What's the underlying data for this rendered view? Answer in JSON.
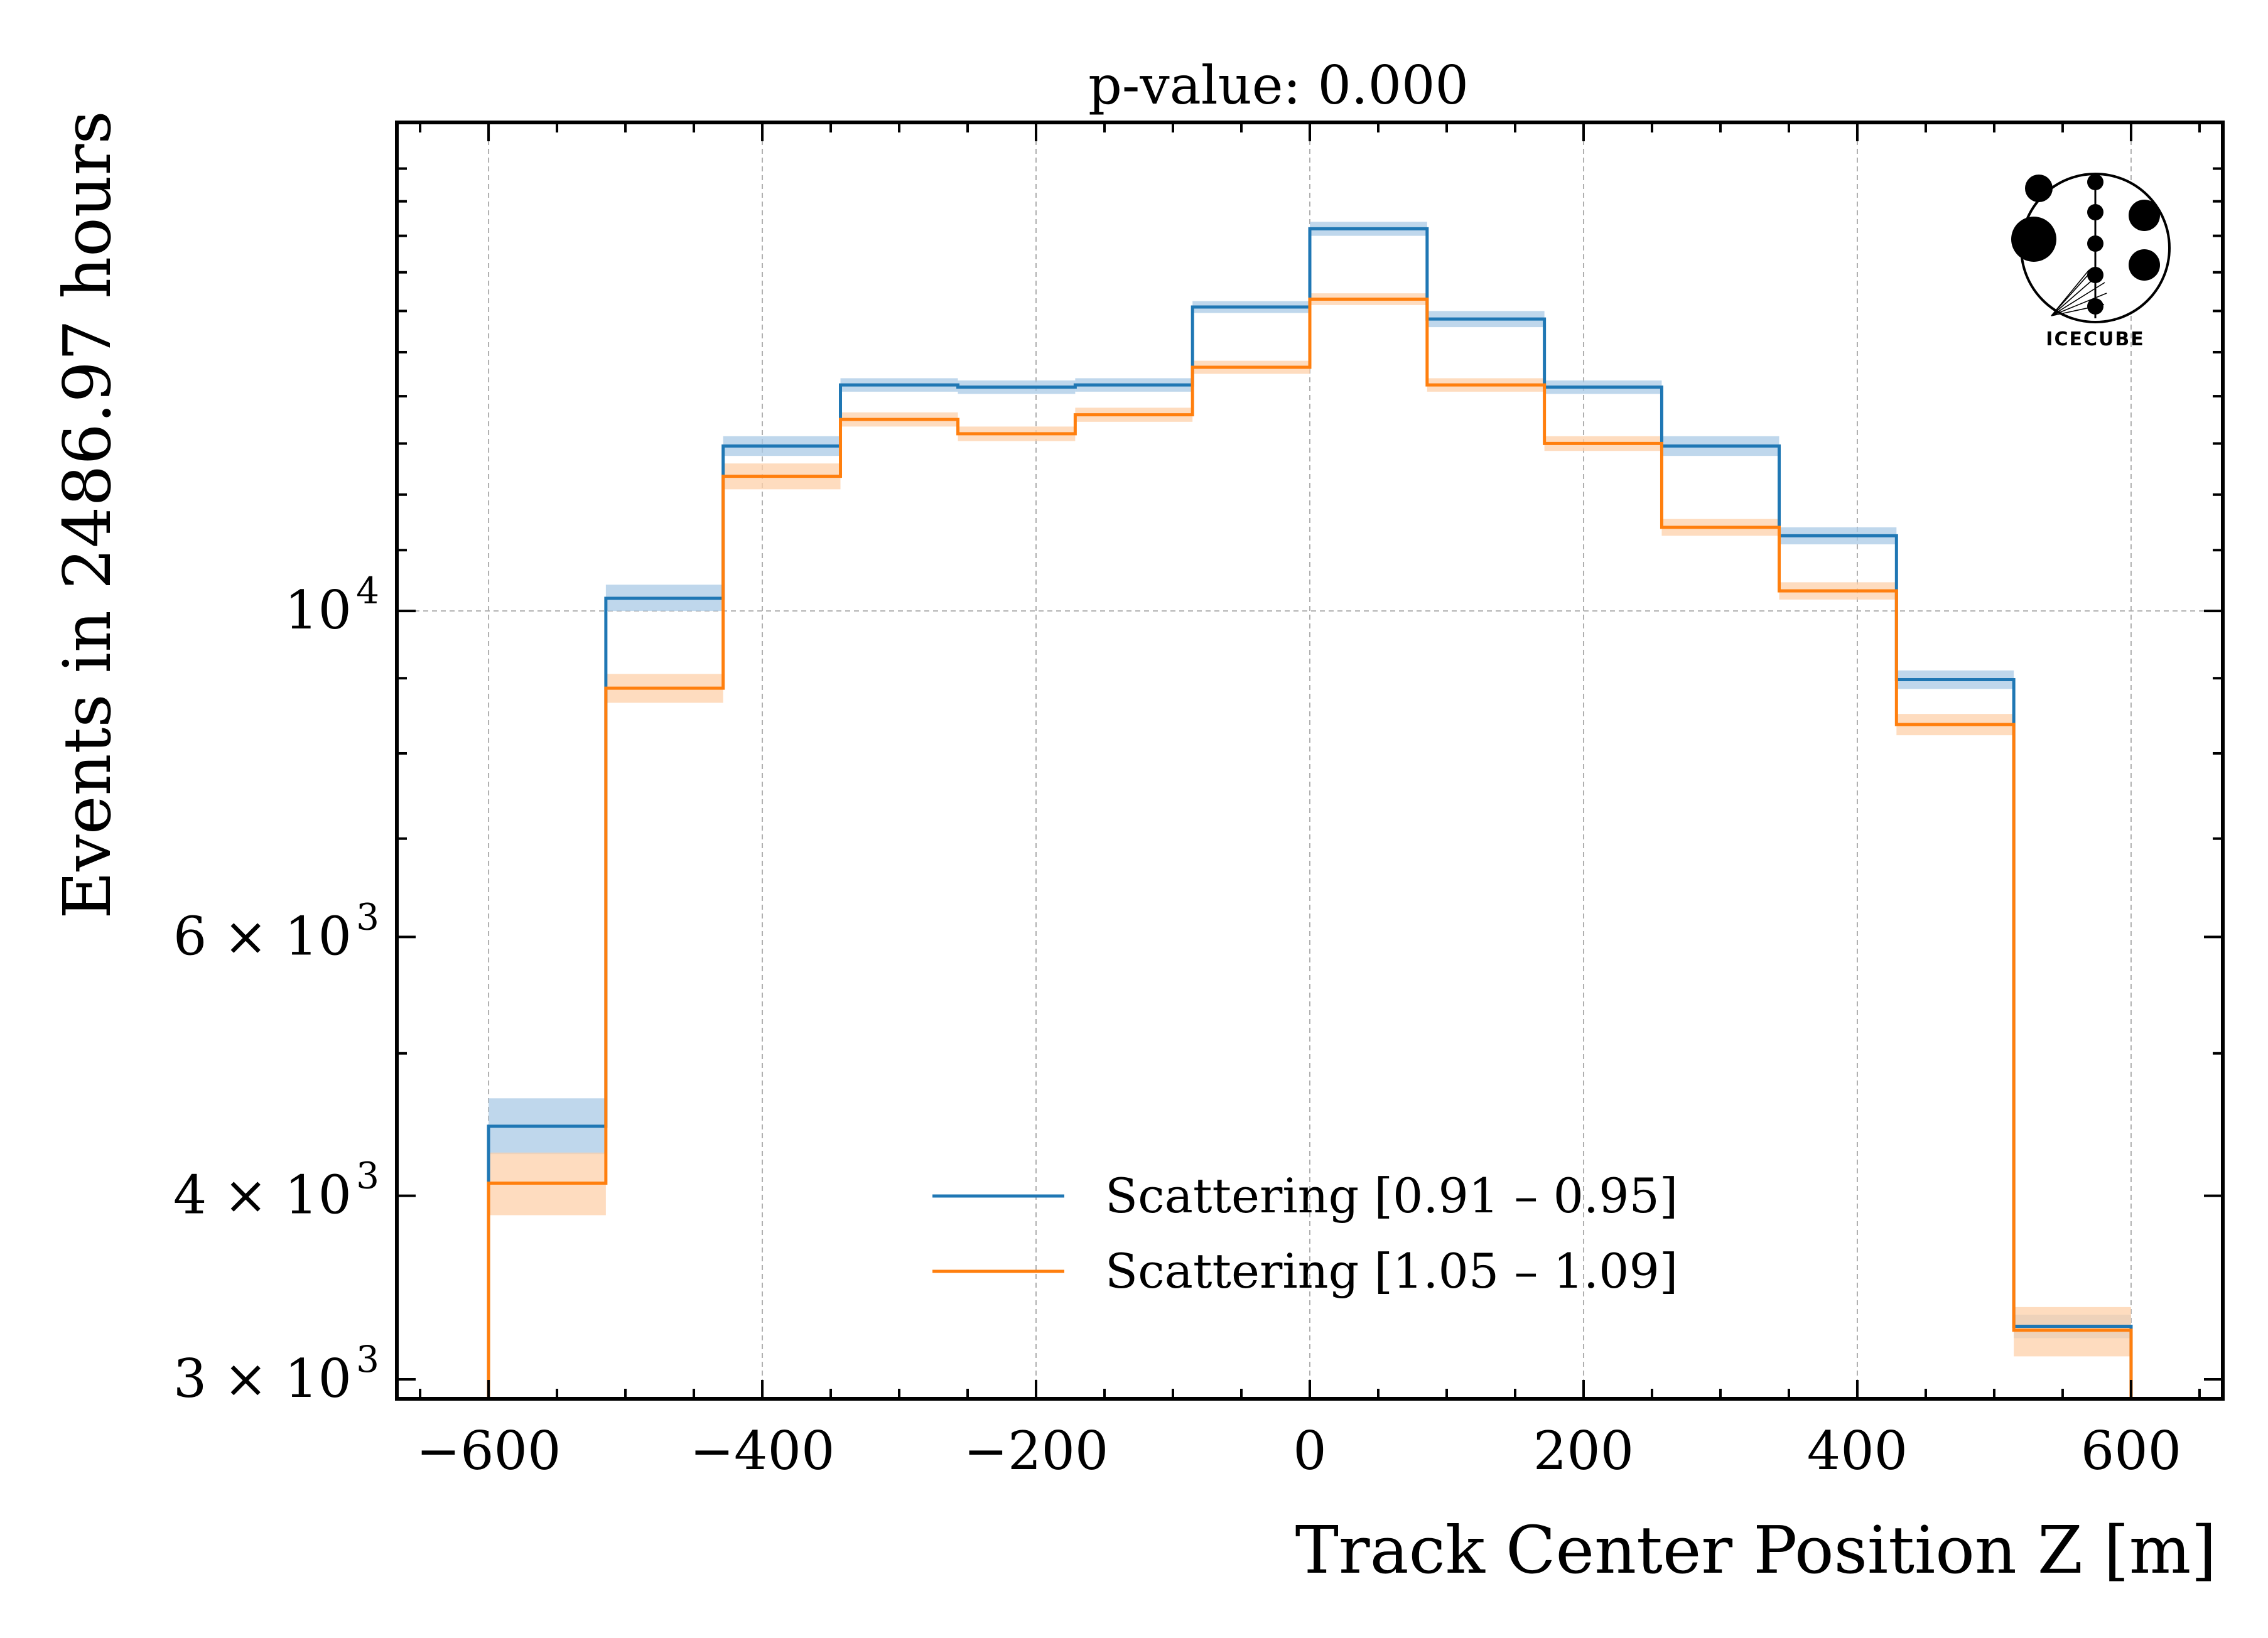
{
  "chart_data": {
    "type": "step-histogram",
    "title": "p-value: 0.000",
    "xlabel": "Track Center Position Z [m]",
    "ylabel": "Events in 2486.97 hours",
    "xlim": [
      -667,
      667
    ],
    "ylim": [
      2910,
      21500
    ],
    "yscale": "log",
    "xticks": [
      {
        "value": -600,
        "label": "−600"
      },
      {
        "value": -400,
        "label": "−400"
      },
      {
        "value": -200,
        "label": "−200"
      },
      {
        "value": 0,
        "label": "0"
      },
      {
        "value": 200,
        "label": "200"
      },
      {
        "value": 400,
        "label": "400"
      },
      {
        "value": 600,
        "label": "600"
      }
    ],
    "yticks": [
      {
        "value": 3000,
        "mant": "3 × 10",
        "exp": "3"
      },
      {
        "value": 4000,
        "mant": "4 × 10",
        "exp": "3"
      },
      {
        "value": 6000,
        "mant": "6 × 10",
        "exp": "3"
      },
      {
        "value": 10000,
        "mant": "10",
        "exp": "4"
      }
    ],
    "bin_edges": [
      -600,
      -514.3,
      -428.6,
      -342.9,
      -257.1,
      -171.4,
      -85.7,
      0,
      85.7,
      171.4,
      257.1,
      342.9,
      428.6,
      514.3,
      600
    ],
    "series": [
      {
        "name": "Scattering [0.91 – 0.95]",
        "color": "#1f77b4",
        "band_color": "#a9c9e6",
        "values": [
          4460,
          10200,
          12950,
          14250,
          14200,
          14250,
          16100,
          18200,
          15800,
          14200,
          12950,
          11250,
          8980,
          3260
        ],
        "band_low": [
          4270,
          10000,
          12750,
          14100,
          14050,
          14100,
          15950,
          18000,
          15600,
          14050,
          12750,
          11100,
          8850,
          3200
        ],
        "band_high": [
          4660,
          10420,
          13150,
          14400,
          14350,
          14400,
          16250,
          18400,
          16000,
          14350,
          13150,
          11400,
          9110,
          3320
        ]
      },
      {
        "name": "Scattering [1.05 – 1.09]",
        "color": "#ff7f0e",
        "band_color": "#fdd0a9",
        "values": [
          4080,
          8860,
          12350,
          13500,
          13200,
          13600,
          14650,
          16300,
          14250,
          13000,
          11400,
          10320,
          8370,
          3240
        ],
        "band_low": [
          3880,
          8660,
          12100,
          13350,
          13050,
          13450,
          14500,
          16150,
          14100,
          12850,
          11250,
          10180,
          8230,
          3110
        ],
        "band_high": [
          4280,
          9060,
          12600,
          13650,
          13350,
          13750,
          14800,
          16450,
          14400,
          13150,
          11550,
          10460,
          8510,
          3360
        ]
      }
    ],
    "grid": true,
    "legend_position": "lower-center",
    "logo": {
      "text": "ICECUBE"
    }
  }
}
